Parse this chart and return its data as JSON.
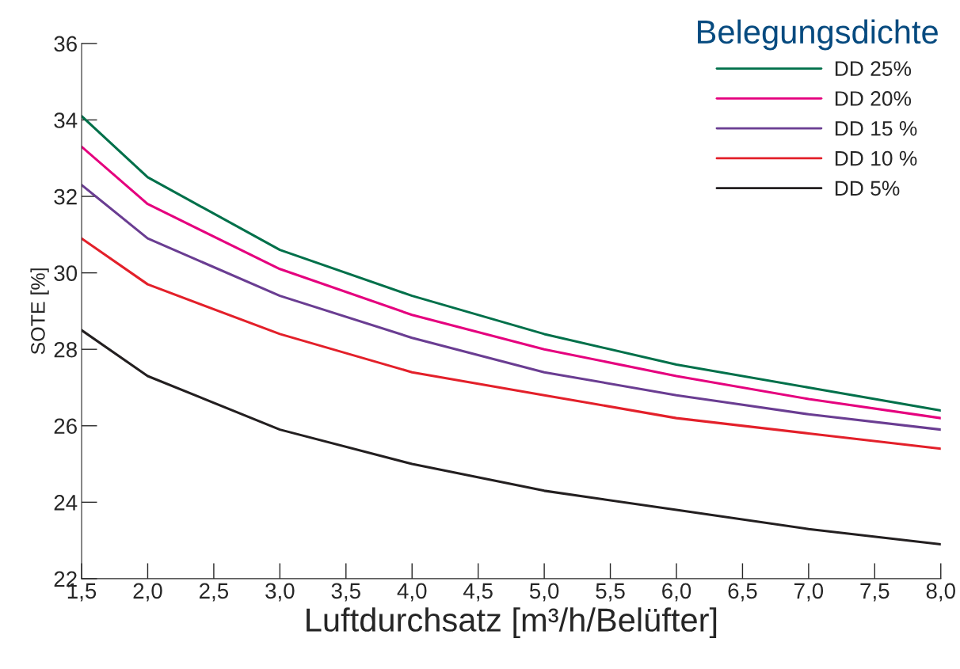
{
  "chart_data": {
    "type": "line",
    "xlabel": "Luftdurchsatz [m³/h/Belüfter]",
    "ylabel": "SOTE [%]",
    "legend_title": "Belegungsdichte",
    "x": [
      1.5,
      2.0,
      3.0,
      4.0,
      5.0,
      6.0,
      7.0,
      8.0
    ],
    "series": [
      {
        "name": "DD 25%",
        "color": "#00704a",
        "values": [
          34.1,
          32.5,
          30.6,
          29.4,
          28.4,
          27.6,
          27.0,
          26.4
        ]
      },
      {
        "name": "DD 20%",
        "color": "#e5007e",
        "values": [
          33.3,
          31.8,
          30.1,
          28.9,
          28.0,
          27.3,
          26.7,
          26.2
        ]
      },
      {
        "name": "DD 15 %",
        "color": "#6a3d92",
        "values": [
          32.3,
          30.9,
          29.4,
          28.3,
          27.4,
          26.8,
          26.3,
          25.9
        ]
      },
      {
        "name": "DD 10 %",
        "color": "#e3202a",
        "values": [
          30.9,
          29.7,
          28.4,
          27.4,
          26.8,
          26.2,
          25.8,
          25.4
        ]
      },
      {
        "name": "DD 5%",
        "color": "#231f20",
        "values": [
          28.5,
          27.3,
          25.9,
          25.0,
          24.3,
          23.8,
          23.3,
          22.9
        ]
      }
    ],
    "xlim": [
      1.5,
      8.0
    ],
    "xticks": [
      {
        "value": 1.5,
        "label": "1,5"
      },
      {
        "value": 2.0,
        "label": "2,0"
      },
      {
        "value": 2.5,
        "label": "2,5"
      },
      {
        "value": 3.0,
        "label": "3,0"
      },
      {
        "value": 3.5,
        "label": "3,5"
      },
      {
        "value": 4.0,
        "label": "4,0"
      },
      {
        "value": 4.5,
        "label": "4,5"
      },
      {
        "value": 5.0,
        "label": "5,0"
      },
      {
        "value": 5.5,
        "label": "5,5"
      },
      {
        "value": 6.0,
        "label": "6,0"
      },
      {
        "value": 6.5,
        "label": "6,5"
      },
      {
        "value": 7.0,
        "label": "7,0"
      },
      {
        "value": 7.5,
        "label": "7,5"
      },
      {
        "value": 8.0,
        "label": "8,0"
      }
    ],
    "ylim": [
      22,
      36
    ],
    "yticks": [
      22,
      24,
      26,
      28,
      30,
      32,
      34,
      36
    ],
    "grid": false,
    "legend": "top right",
    "marker": "none",
    "line_style": "solid"
  }
}
